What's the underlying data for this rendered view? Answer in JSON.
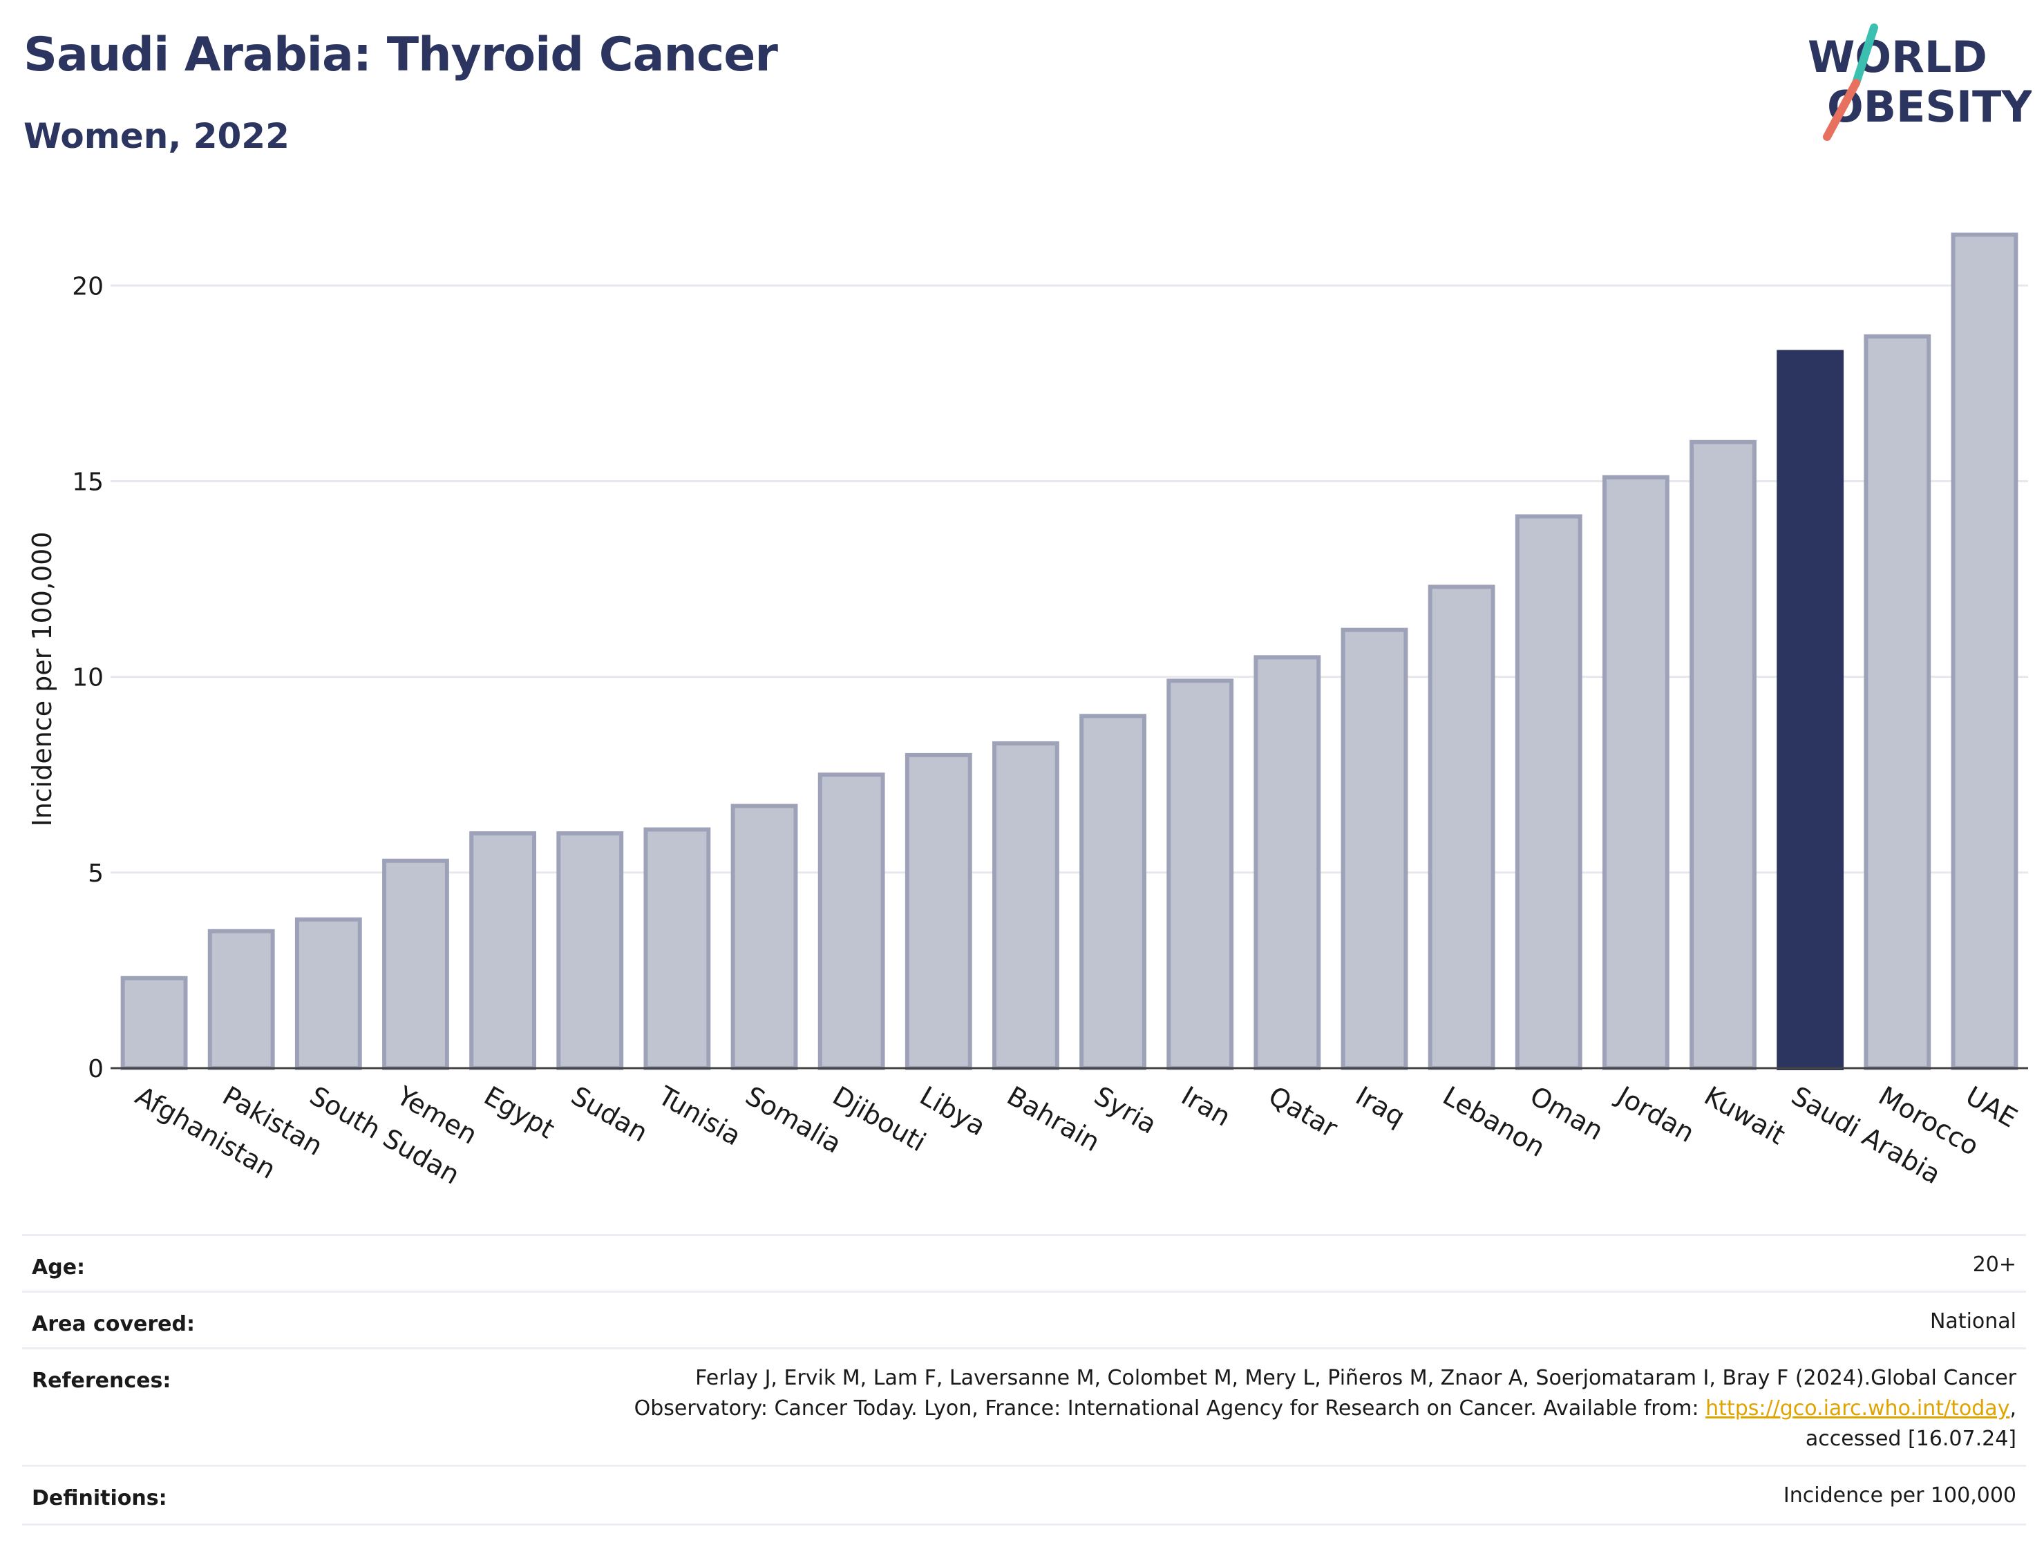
{
  "header": {
    "title": "Saudi Arabia: Thyroid Cancer",
    "subtitle": "Women, 2022"
  },
  "logo": {
    "line1": "WORLD",
    "line2": "OBESITY",
    "colors": {
      "text": "#2b3560",
      "slash_top": "#3bbfb0",
      "slash_bottom": "#e8705e"
    }
  },
  "chart_data": {
    "type": "bar",
    "ylabel": "Incidence per 100,000",
    "ylim": [
      0,
      22
    ],
    "yticks": [
      0,
      5,
      10,
      15,
      20
    ],
    "grid": true,
    "highlight": "Saudi Arabia",
    "colors": {
      "bar": "#c0c4d0",
      "bar_edge": "#9da2b8",
      "highlight": "#2b3560"
    },
    "categories": [
      "Afghanistan",
      "Pakistan",
      "South Sudan",
      "Yemen",
      "Egypt",
      "Sudan",
      "Tunisia",
      "Somalia",
      "Djibouti",
      "Libya",
      "Bahrain",
      "Syria",
      "Iran",
      "Qatar",
      "Iraq",
      "Lebanon",
      "Oman",
      "Jordan",
      "Kuwait",
      "Saudi Arabia",
      "Morocco",
      "UAE"
    ],
    "values": [
      2.3,
      3.5,
      3.8,
      5.3,
      6.0,
      6.0,
      6.1,
      6.7,
      7.5,
      8.0,
      8.3,
      9.0,
      9.9,
      10.5,
      11.2,
      12.3,
      14.1,
      15.1,
      16.0,
      18.3,
      18.7,
      21.3
    ]
  },
  "info": {
    "age": {
      "label": "Age:",
      "value": "20+"
    },
    "area": {
      "label": "Area covered:",
      "value": "National"
    },
    "references": {
      "label": "References:",
      "line1": "Ferlay J, Ervik M, Lam F, Laversanne M, Colombet M, Mery L, Piñeros M, Znaor A, Soerjomataram I, Bray F (2024).Global Cancer",
      "line2_prefix": "Observatory: Cancer Today. Lyon, France: International Agency for Research on Cancer. Available from: ",
      "link": "https://gco.iarc.who.int/today",
      "line2_suffix": ",",
      "line3": "accessed [16.07.24]"
    },
    "definitions": {
      "label": "Definitions:",
      "value": "Incidence per 100,000"
    }
  }
}
